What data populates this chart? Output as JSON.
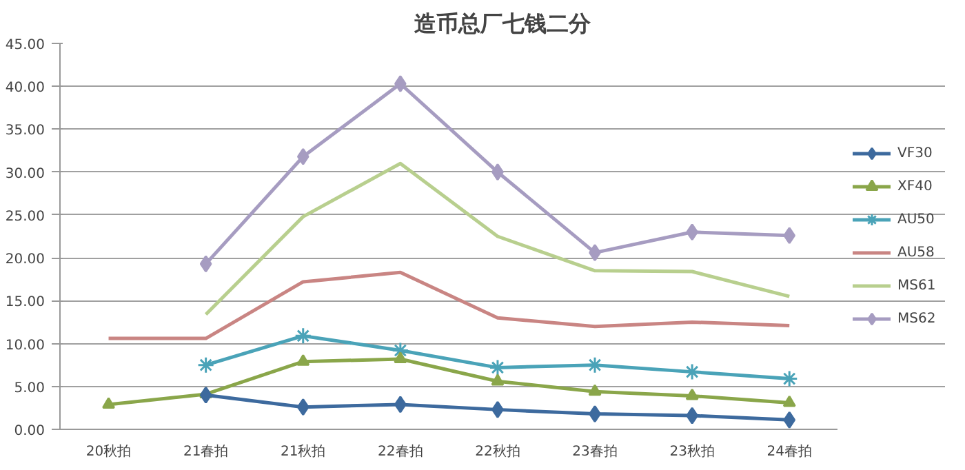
{
  "chart_data": {
    "type": "line",
    "title": "造币总厂七钱二分",
    "categories": [
      "20秋拍",
      "21春拍",
      "21秋拍",
      "22春拍",
      "22秋拍",
      "23春拍",
      "23秋拍",
      "24春拍"
    ],
    "series": [
      {
        "name": "VF30",
        "color": "#3d6a9e",
        "marker": "diamond",
        "values": [
          null,
          4.0,
          2.6,
          2.9,
          2.3,
          1.8,
          1.6,
          1.1
        ]
      },
      {
        "name": "XF40",
        "color": "#8aa64a",
        "marker": "triangle",
        "values": [
          2.9,
          4.1,
          7.9,
          8.2,
          5.6,
          4.4,
          3.9,
          3.1
        ]
      },
      {
        "name": "AU50",
        "color": "#4aa3b8",
        "marker": "cross",
        "values": [
          null,
          7.5,
          10.9,
          9.2,
          7.2,
          7.5,
          6.7,
          5.9
        ]
      },
      {
        "name": "AU58",
        "color": "#c98583",
        "marker": "none",
        "values": [
          10.6,
          10.6,
          17.2,
          18.3,
          13.0,
          12.0,
          12.5,
          12.1
        ]
      },
      {
        "name": "MS61",
        "color": "#b8cf8e",
        "marker": "none",
        "values": [
          null,
          13.4,
          24.8,
          31.0,
          22.5,
          18.5,
          18.4,
          15.5
        ]
      },
      {
        "name": "MS62",
        "color": "#a69cc1",
        "marker": "diamond",
        "values": [
          null,
          19.3,
          31.8,
          40.3,
          30.0,
          20.6,
          23.0,
          22.6
        ]
      }
    ],
    "ylim": [
      0,
      45
    ],
    "yticks": [
      {
        "value": 0,
        "label": "0.00"
      },
      {
        "value": 5,
        "label": "5.00"
      },
      {
        "value": 10,
        "label": "10.00"
      },
      {
        "value": 15,
        "label": "15.00"
      },
      {
        "value": 20,
        "label": "20.00"
      },
      {
        "value": 25,
        "label": "25.00"
      },
      {
        "value": 30,
        "label": "30.00"
      },
      {
        "value": 35,
        "label": "35.00"
      },
      {
        "value": 40,
        "label": "40.00"
      },
      {
        "value": 45,
        "label": "45.00"
      }
    ],
    "grid": "y",
    "legend": "right",
    "line_style": "solid"
  }
}
